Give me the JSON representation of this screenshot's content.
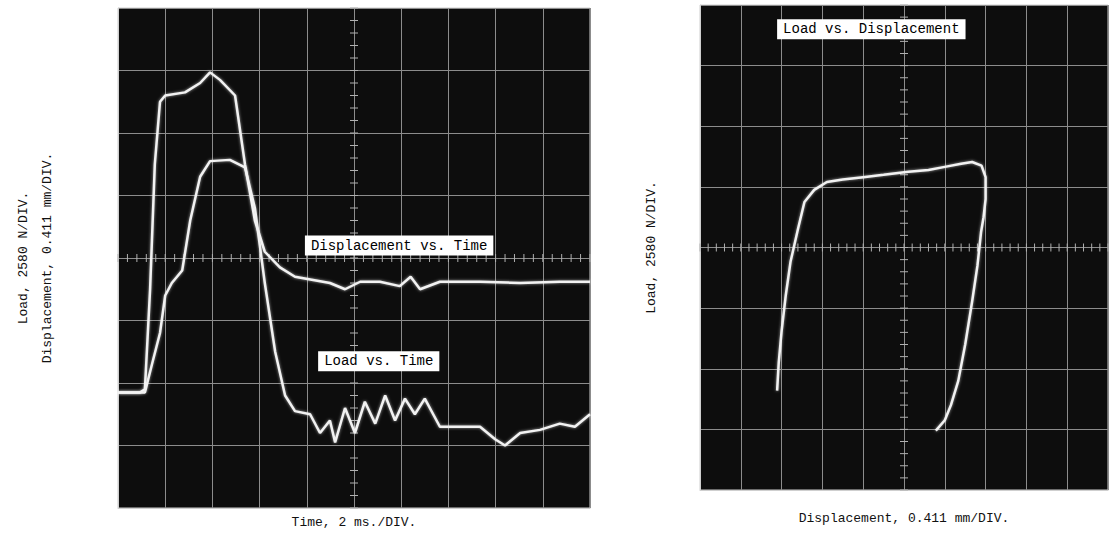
{
  "chart_data": [
    {
      "type": "line",
      "xlabel": "Time, 2 ms./DIV.",
      "ylabel": [
        "Load, 2580 N/DIV.",
        "Displacement, 0.411 mm/DIV."
      ],
      "xlim": [
        0,
        10
      ],
      "ylim": [
        0,
        8
      ],
      "xticks": [
        0,
        1,
        2,
        3,
        4,
        5,
        6,
        7,
        8,
        9,
        10
      ],
      "yticks": [
        0,
        1,
        2,
        3,
        4,
        5,
        6,
        7,
        8
      ],
      "grid": true,
      "tick_labels": false,
      "series": [
        {
          "name": "Displacement vs. Time",
          "color": "#f2f2f2",
          "x": [
            0,
            0.47,
            0.57,
            0.68,
            0.78,
            0.89,
            1.0,
            1.42,
            1.74,
            1.95,
            2.16,
            2.48,
            2.69,
            2.9,
            3.11,
            3.43,
            3.75,
            4.49,
            4.81,
            5.13,
            5.55,
            5.97,
            6.2,
            6.4,
            6.82,
            7.67,
            8.52,
            9.36,
            10
          ],
          "values": [
            1.85,
            1.85,
            1.9,
            3.5,
            5.5,
            6.5,
            6.6,
            6.65,
            6.8,
            6.97,
            6.85,
            6.6,
            5.5,
            4.6,
            4.1,
            3.85,
            3.7,
            3.6,
            3.5,
            3.62,
            3.62,
            3.55,
            3.7,
            3.5,
            3.62,
            3.62,
            3.6,
            3.62,
            3.62
          ]
        },
        {
          "name": "Load vs. Time",
          "color": "#f2f2f2",
          "x": [
            0,
            0.57,
            0.72,
            0.89,
            1.0,
            1.14,
            1.36,
            1.53,
            1.74,
            1.95,
            2.37,
            2.69,
            2.9,
            3.11,
            3.33,
            3.54,
            3.75,
            4.07,
            4.28,
            4.49,
            4.6,
            4.81,
            5.02,
            5.23,
            5.45,
            5.66,
            5.87,
            6.08,
            6.29,
            6.5,
            6.82,
            7.25,
            7.67,
            7.99,
            8.2,
            8.52,
            8.94,
            9.36,
            9.68,
            10
          ],
          "values": [
            1.85,
            1.85,
            2.3,
            2.8,
            3.4,
            3.6,
            3.8,
            4.6,
            5.3,
            5.55,
            5.57,
            5.45,
            4.8,
            3.6,
            2.5,
            1.8,
            1.55,
            1.5,
            1.2,
            1.4,
            1.05,
            1.6,
            1.2,
            1.7,
            1.35,
            1.8,
            1.4,
            1.75,
            1.5,
            1.75,
            1.3,
            1.3,
            1.3,
            1.1,
            1.0,
            1.2,
            1.25,
            1.35,
            1.3,
            1.5
          ]
        }
      ]
    },
    {
      "type": "line",
      "title": "Load vs. Displacement",
      "xlabel": "Displacement, 0.411 mm/DIV.",
      "ylabel": "Load, 2580 N/DIV.",
      "xlim": [
        0,
        10
      ],
      "ylim": [
        0,
        8
      ],
      "xticks": [
        0,
        1,
        2,
        3,
        4,
        5,
        6,
        7,
        8,
        9,
        10
      ],
      "yticks": [
        0,
        1,
        2,
        3,
        4,
        5,
        6,
        7,
        8
      ],
      "grid": true,
      "tick_labels": false,
      "series": [
        {
          "color": "#f2f2f2",
          "x": [
            1.89,
            1.93,
            2.0,
            2.1,
            2.22,
            2.4,
            2.56,
            2.8,
            3.11,
            3.5,
            4.0,
            4.5,
            5.11,
            5.6,
            6.0,
            6.4,
            6.67,
            6.9,
            7.0,
            7.0,
            6.95,
            6.89,
            6.8,
            6.67,
            6.5,
            6.33,
            6.15,
            6.0,
            5.78
          ],
          "values": [
            1.64,
            2.1,
            2.62,
            3.2,
            3.77,
            4.3,
            4.75,
            4.95,
            5.08,
            5.12,
            5.16,
            5.2,
            5.25,
            5.28,
            5.33,
            5.38,
            5.41,
            5.35,
            5.16,
            4.8,
            4.5,
            4.26,
            3.7,
            3.11,
            2.4,
            1.8,
            1.4,
            1.15,
            0.98
          ]
        }
      ]
    }
  ]
}
